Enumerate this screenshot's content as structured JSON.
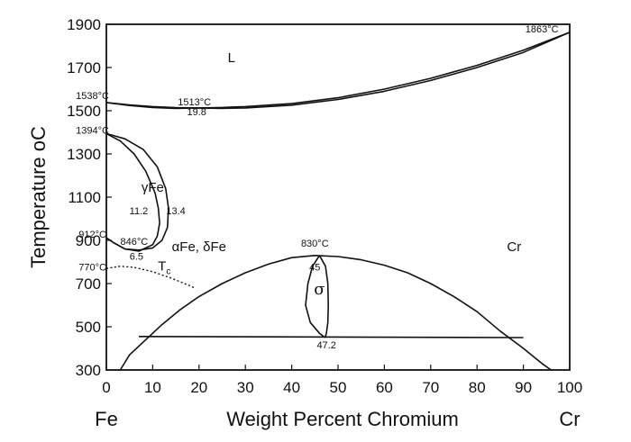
{
  "chart_data": {
    "type": "line",
    "title": "",
    "xlabel": "Weight Percent Chromium",
    "ylabel": "Temperature",
    "ylabel_unit": "oC",
    "xlim": [
      0,
      100
    ],
    "ylim": [
      300,
      1900
    ],
    "x_ticks": [
      0,
      10,
      20,
      30,
      40,
      50,
      60,
      70,
      80,
      90,
      100
    ],
    "y_ticks": [
      300,
      500,
      700,
      900,
      1100,
      1300,
      1500,
      1700,
      1900
    ],
    "x_end_labels": {
      "left": "Fe",
      "right": "Cr"
    },
    "grid": false,
    "series": [
      {
        "role": "liquidus",
        "style": "solid",
        "points": [
          [
            0,
            1538
          ],
          [
            5,
            1527
          ],
          [
            10,
            1519
          ],
          [
            15,
            1514
          ],
          [
            19.8,
            1513
          ],
          [
            25,
            1515
          ],
          [
            30,
            1519
          ],
          [
            40,
            1533
          ],
          [
            50,
            1560
          ],
          [
            60,
            1600
          ],
          [
            70,
            1650
          ],
          [
            80,
            1710
          ],
          [
            90,
            1780
          ],
          [
            100,
            1863
          ]
        ]
      },
      {
        "role": "solidus",
        "style": "solid",
        "points": [
          [
            0,
            1538
          ],
          [
            5,
            1524
          ],
          [
            10,
            1515
          ],
          [
            15,
            1511
          ],
          [
            19.8,
            1513
          ],
          [
            25,
            1511
          ],
          [
            30,
            1513
          ],
          [
            40,
            1526
          ],
          [
            50,
            1552
          ],
          [
            60,
            1590
          ],
          [
            70,
            1640
          ],
          [
            80,
            1700
          ],
          [
            90,
            1770
          ],
          [
            100,
            1863
          ]
        ]
      },
      {
        "role": "gamma-loop-inner",
        "style": "solid",
        "points": [
          [
            0,
            1394
          ],
          [
            3,
            1360
          ],
          [
            6,
            1300
          ],
          [
            8.5,
            1220
          ],
          [
            10.5,
            1120
          ],
          [
            11.2,
            1050
          ],
          [
            11.5,
            980
          ],
          [
            11,
            920
          ],
          [
            10,
            880
          ],
          [
            7,
            850
          ],
          [
            4,
            860
          ],
          [
            1.5,
            890
          ],
          [
            0,
            912
          ]
        ]
      },
      {
        "role": "gamma-loop-outer",
        "style": "solid",
        "points": [
          [
            0,
            1394
          ],
          [
            4,
            1370
          ],
          [
            8,
            1320
          ],
          [
            11,
            1240
          ],
          [
            12.8,
            1140
          ],
          [
            13.4,
            1050
          ],
          [
            13.2,
            960
          ],
          [
            12,
            900
          ],
          [
            10,
            865
          ],
          [
            7,
            855
          ],
          [
            4,
            860
          ],
          [
            1.5,
            890
          ],
          [
            0,
            912
          ]
        ]
      },
      {
        "role": "sigma-dome",
        "style": "solid",
        "points": [
          [
            3,
            300
          ],
          [
            5,
            370
          ],
          [
            8,
            430
          ],
          [
            12,
            510
          ],
          [
            16,
            580
          ],
          [
            20,
            640
          ],
          [
            25,
            700
          ],
          [
            30,
            750
          ],
          [
            35,
            790
          ],
          [
            40,
            820
          ],
          [
            45,
            830
          ],
          [
            50,
            825
          ],
          [
            55,
            810
          ],
          [
            60,
            785
          ],
          [
            65,
            750
          ],
          [
            70,
            700
          ],
          [
            75,
            640
          ],
          [
            80,
            570
          ],
          [
            85,
            480
          ],
          [
            90,
            400
          ],
          [
            94,
            330
          ],
          [
            96,
            300
          ]
        ]
      },
      {
        "role": "eutectoid-isotherm",
        "style": "solid",
        "points": [
          [
            7,
            455
          ],
          [
            90,
            450
          ]
        ]
      },
      {
        "role": "sigma-left",
        "style": "solid",
        "points": [
          [
            46,
            830
          ],
          [
            44.5,
            780
          ],
          [
            43.5,
            700
          ],
          [
            43,
            600
          ],
          [
            44,
            520
          ],
          [
            46,
            470
          ],
          [
            47.2,
            450
          ]
        ]
      },
      {
        "role": "sigma-right",
        "style": "solid",
        "points": [
          [
            46,
            830
          ],
          [
            47.3,
            780
          ],
          [
            47.8,
            700
          ],
          [
            47.9,
            600
          ],
          [
            47.8,
            520
          ],
          [
            47.5,
            470
          ],
          [
            47.2,
            450
          ]
        ]
      },
      {
        "role": "curie-line",
        "style": "dotted",
        "points": [
          [
            0,
            770
          ],
          [
            3,
            780
          ],
          [
            6,
            775
          ],
          [
            10,
            755
          ],
          [
            14,
            725
          ],
          [
            18,
            690
          ],
          [
            19,
            680
          ]
        ]
      }
    ],
    "annotations": [
      {
        "text": "1863°C",
        "x": 94,
        "y": 1863,
        "size": "small"
      },
      {
        "text": "1538°C",
        "x": -3,
        "y": 1555,
        "size": "small"
      },
      {
        "text": "1513°C",
        "x": 19,
        "y": 1525,
        "size": "small"
      },
      {
        "text": "19.8",
        "x": 19.5,
        "y": 1480,
        "size": "small"
      },
      {
        "text": "1394°C",
        "x": -3,
        "y": 1394,
        "size": "small"
      },
      {
        "text": "912°C",
        "x": -3,
        "y": 912,
        "size": "small"
      },
      {
        "text": "846°C",
        "x": 6,
        "y": 880,
        "size": "small"
      },
      {
        "text": "6.5",
        "x": 6.5,
        "y": 810,
        "size": "small"
      },
      {
        "text": "770°C",
        "x": -3,
        "y": 760,
        "size": "small"
      },
      {
        "text": "11.2",
        "x": 7,
        "y": 1020,
        "size": "small"
      },
      {
        "text": "13.4",
        "x": 15,
        "y": 1020,
        "size": "small"
      },
      {
        "text": "830°C",
        "x": 45,
        "y": 870,
        "size": "small"
      },
      {
        "text": "45",
        "x": 45,
        "y": 760,
        "size": "small"
      },
      {
        "text": "47.2",
        "x": 47.5,
        "y": 400,
        "size": "small"
      },
      {
        "text": "L",
        "x": 27,
        "y": 1725,
        "size": "med"
      },
      {
        "text": "γFe",
        "x": 10,
        "y": 1125,
        "size": "med"
      },
      {
        "text": "αFe, δFe",
        "x": 20,
        "y": 850,
        "size": "med"
      },
      {
        "text": "Cr",
        "x": 88,
        "y": 850,
        "size": "med"
      },
      {
        "text": "σ",
        "x": 46,
        "y": 650,
        "size": "large"
      },
      {
        "text": "T",
        "x": 12.5,
        "y": 760,
        "size": "med",
        "subscript": "c"
      }
    ]
  }
}
